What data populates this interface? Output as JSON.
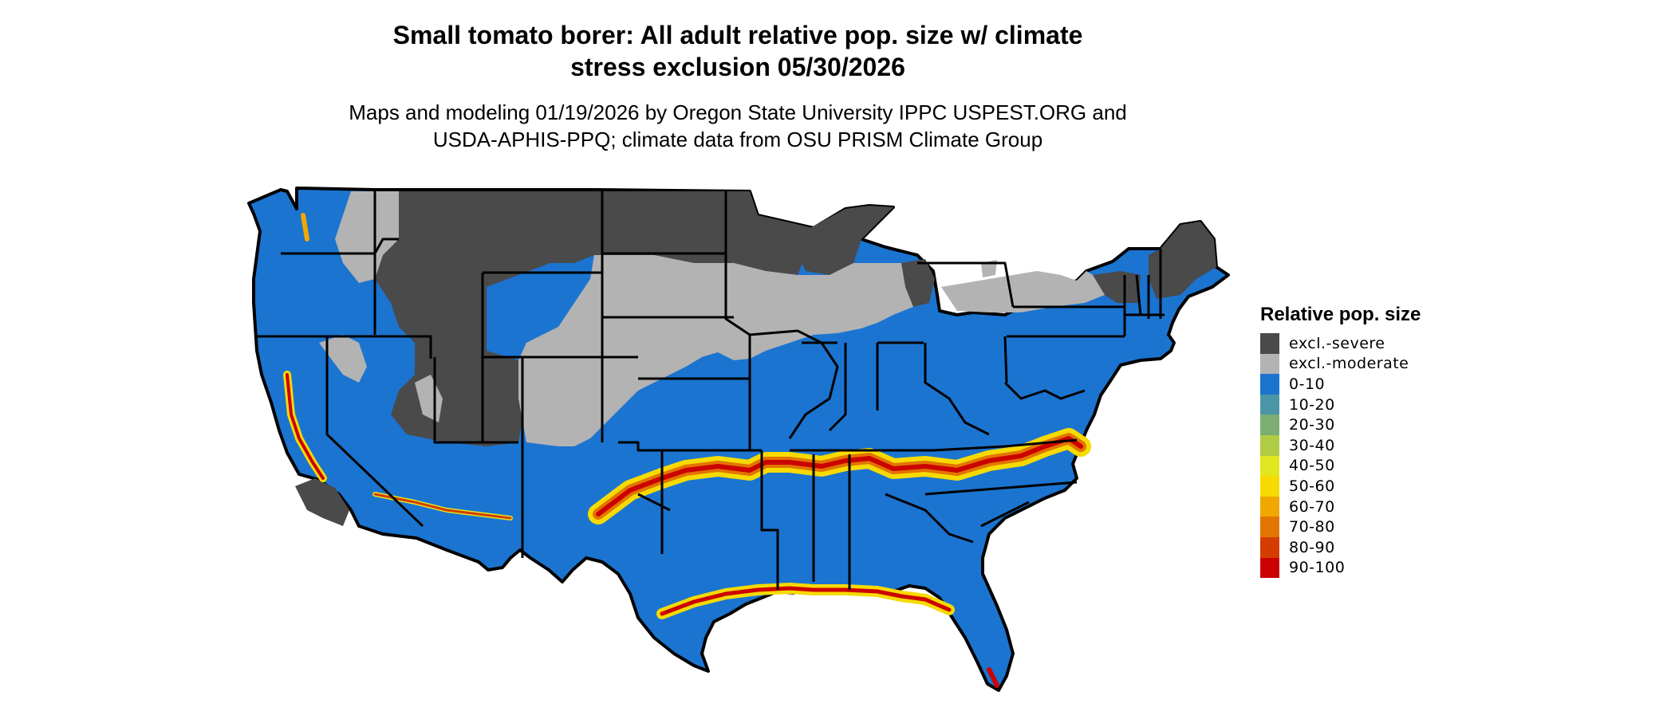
{
  "title": {
    "line1": "Small tomato borer: All adult relative pop. size w/ climate",
    "line2": "stress exclusion 05/30/2026"
  },
  "subtitle": {
    "line1": "Maps and modeling 01/19/2026 by Oregon State University IPPC USPEST.ORG and",
    "line2": "USDA-APHIS-PPQ; climate data from OSU PRISM Climate Group"
  },
  "legend": {
    "title": "Relative pop. size",
    "items": [
      {
        "label": "excl.-severe",
        "color": "#4a4a4a"
      },
      {
        "label": "excl.-moderate",
        "color": "#b3b3b3"
      },
      {
        "label": "0-10",
        "color": "#1b74d0"
      },
      {
        "label": "10-20",
        "color": "#4a96a6"
      },
      {
        "label": "20-30",
        "color": "#7cae72"
      },
      {
        "label": "30-40",
        "color": "#b0cc44"
      },
      {
        "label": "40-50",
        "color": "#e1e61e"
      },
      {
        "label": "50-60",
        "color": "#f6da00"
      },
      {
        "label": "60-70",
        "color": "#f0a800"
      },
      {
        "label": "70-80",
        "color": "#e27400"
      },
      {
        "label": "80-90",
        "color": "#d53c00"
      },
      {
        "label": "90-100",
        "color": "#cc0000"
      }
    ]
  }
}
